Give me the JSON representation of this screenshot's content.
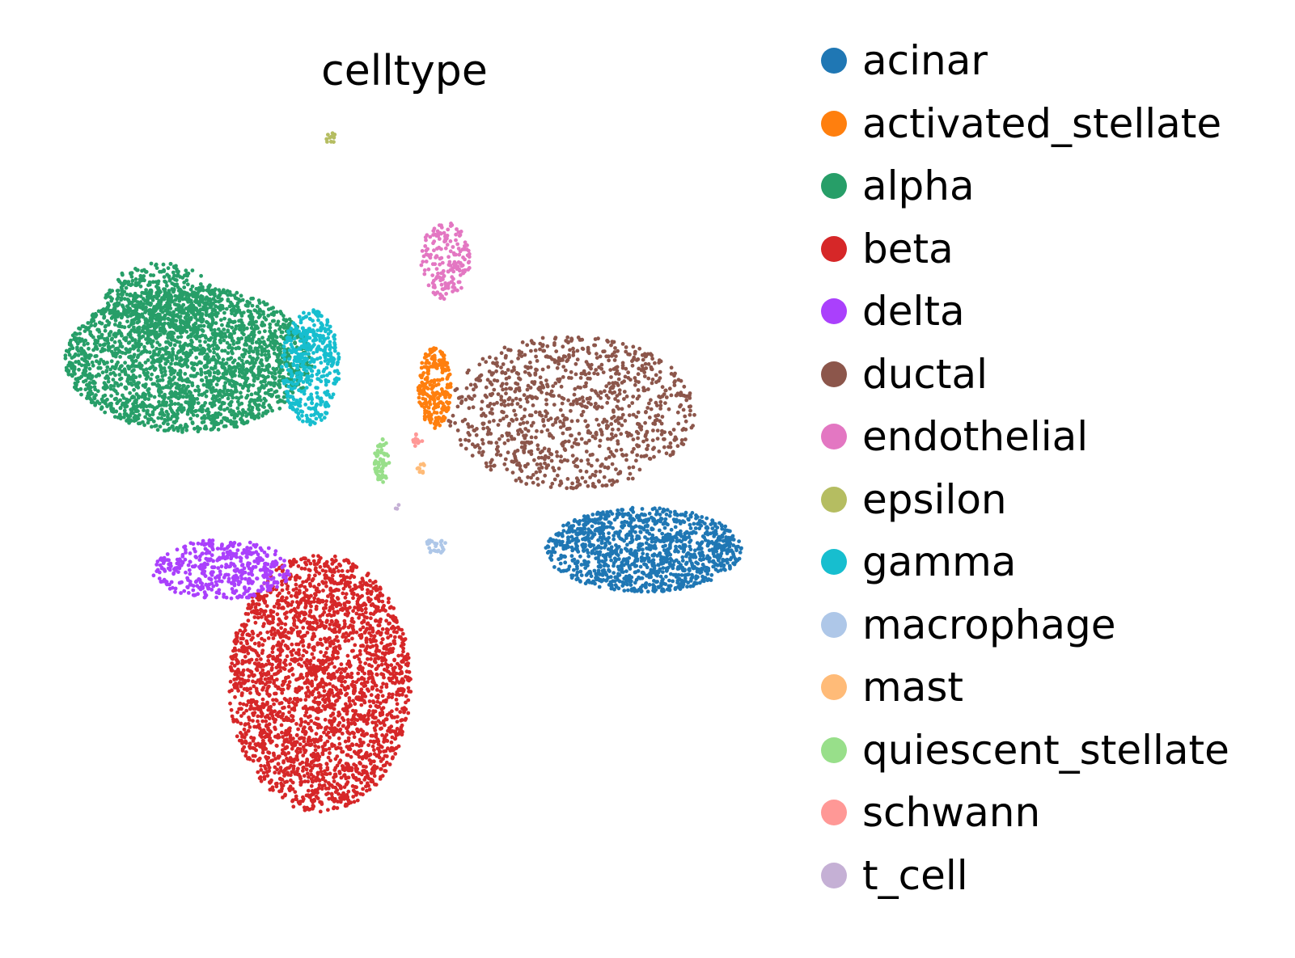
{
  "chart_data": {
    "type": "scatter",
    "title": "celltype",
    "xlabel": "",
    "ylabel": "",
    "axes_visible": false,
    "grid": false,
    "legend_position": "right",
    "series": [
      {
        "name": "acinar",
        "color": "#1f77b4",
        "clusters": [
          {
            "cx": 8.3,
            "cy": -1.4,
            "rx": 2.7,
            "ry": 1.05,
            "n": 1200
          }
        ]
      },
      {
        "name": "activated_stellate",
        "color": "#ff7f0e",
        "clusters": [
          {
            "cx": 2.55,
            "cy": 2.6,
            "rx": 0.45,
            "ry": 1.0,
            "n": 240
          }
        ]
      },
      {
        "name": "alpha",
        "color": "#279e68",
        "clusters": [
          {
            "cx": -4.2,
            "cy": 3.3,
            "rx": 3.4,
            "ry": 1.8,
            "n": 2400
          },
          {
            "cx": -5.0,
            "cy": 4.8,
            "rx": 1.5,
            "ry": 0.9,
            "n": 400
          }
        ]
      },
      {
        "name": "beta",
        "color": "#d62728",
        "clusters": [
          {
            "cx": -0.6,
            "cy": -4.7,
            "rx": 2.5,
            "ry": 3.2,
            "n": 2600
          }
        ]
      },
      {
        "name": "delta",
        "color": "#aa40fc",
        "clusters": [
          {
            "cx": -3.3,
            "cy": -1.9,
            "rx": 1.9,
            "ry": 0.75,
            "n": 450
          }
        ]
      },
      {
        "name": "ductal",
        "color": "#8c564b",
        "clusters": [
          {
            "cx": 6.3,
            "cy": 2.0,
            "rx": 3.4,
            "ry": 1.9,
            "n": 1000
          }
        ]
      },
      {
        "name": "endothelial",
        "color": "#e377c2",
        "clusters": [
          {
            "cx": 2.85,
            "cy": 5.75,
            "rx": 0.7,
            "ry": 0.95,
            "n": 180
          }
        ]
      },
      {
        "name": "epsilon",
        "color": "#b5bd61",
        "clusters": [
          {
            "cx": -0.3,
            "cy": 8.8,
            "rx": 0.15,
            "ry": 0.15,
            "n": 10
          }
        ]
      },
      {
        "name": "gamma",
        "color": "#17becf",
        "clusters": [
          {
            "cx": -0.85,
            "cy": 3.1,
            "rx": 0.8,
            "ry": 1.45,
            "n": 420
          }
        ]
      },
      {
        "name": "macrophage",
        "color": "#aec7e8",
        "clusters": [
          {
            "cx": 2.6,
            "cy": -1.3,
            "rx": 0.3,
            "ry": 0.2,
            "n": 25
          }
        ]
      },
      {
        "name": "mast",
        "color": "#ffbb78",
        "clusters": [
          {
            "cx": 2.2,
            "cy": 0.6,
            "rx": 0.15,
            "ry": 0.15,
            "n": 10
          }
        ]
      },
      {
        "name": "quiescent_stellate",
        "color": "#98df8a",
        "clusters": [
          {
            "cx": 1.1,
            "cy": 0.8,
            "rx": 0.2,
            "ry": 0.55,
            "n": 70
          }
        ]
      },
      {
        "name": "schwann",
        "color": "#ff9896",
        "clusters": [
          {
            "cx": 2.1,
            "cy": 1.3,
            "rx": 0.15,
            "ry": 0.2,
            "n": 12
          }
        ]
      },
      {
        "name": "t_cell",
        "color": "#c5b0d5",
        "clusters": [
          {
            "cx": 1.5,
            "cy": -0.3,
            "rx": 0.1,
            "ry": 0.1,
            "n": 3
          }
        ]
      }
    ],
    "xlim": [
      -8.5,
      11.5
    ],
    "ylim": [
      -10.0,
      10.0
    ]
  }
}
